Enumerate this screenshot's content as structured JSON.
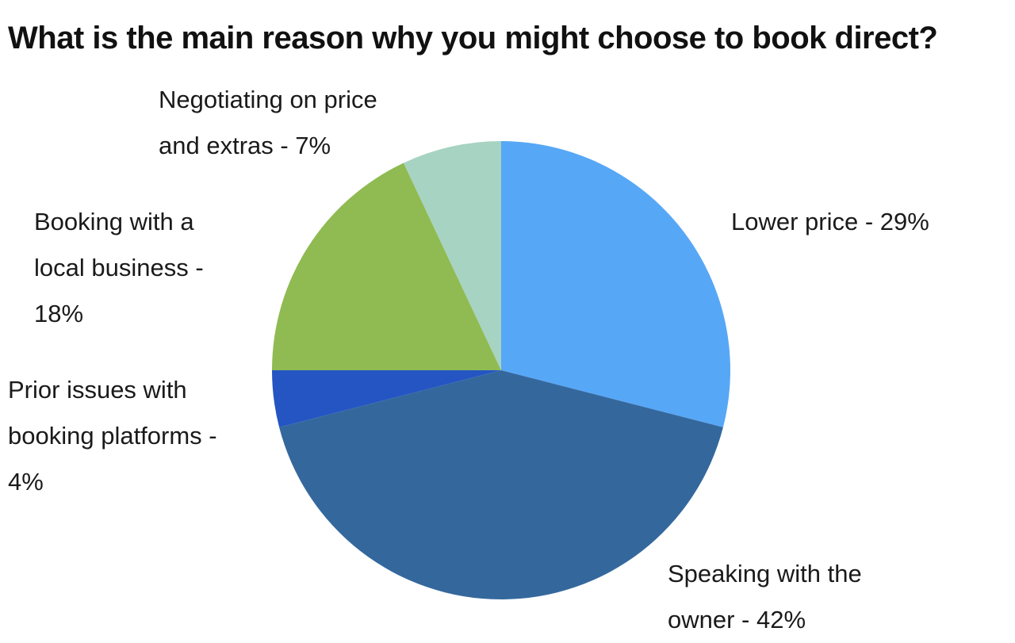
{
  "chart_data": {
    "type": "pie",
    "title": "What is the main reason why you might choose to book direct?",
    "slices": [
      {
        "label_lines": [
          "Lower price - 29%"
        ],
        "value": 29,
        "color": "#57a7f7"
      },
      {
        "label_lines": [
          "Speaking with the",
          "owner - 42%"
        ],
        "value": 42,
        "color": "#34689d"
      },
      {
        "label_lines": [
          "Prior issues with",
          "booking platforms -",
          "4%"
        ],
        "value": 4,
        "color": "#2455c3"
      },
      {
        "label_lines": [
          "Booking with a",
          "local business -",
          "18%"
        ],
        "value": 18,
        "color": "#8fbb52"
      },
      {
        "label_lines": [
          "Negotiating on price",
          "and extras - 7%"
        ],
        "value": 7,
        "color": "#a7d3c2"
      }
    ],
    "start_angle": "top (12 o'clock)",
    "direction": "clockwise",
    "legend": "none (labels beside slices)"
  }
}
